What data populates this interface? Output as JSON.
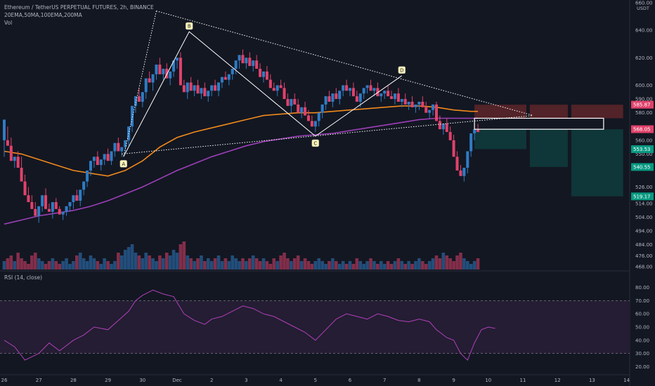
{
  "title": "Ethereum / TetherUS PERPETUAL FUTURES, 2h, BINANCE",
  "indicators_label": "20EMA,50MA,100EMA,200MA",
  "vol_label": "Vol",
  "rsi_label": "RSI (14, close)",
  "currency": "USDT",
  "colors": {
    "bg": "#131722",
    "up": "#2f7cc4",
    "down": "#e0426b",
    "ema100": "#f0891c",
    "ma200": "#9c3fb8",
    "rsi": "#b040b8",
    "rsi_band": "#241d33",
    "stop_zone": "#5a2529",
    "target_zone": "#0f3a3c",
    "pattern": "#ffffff",
    "price_tag_red": "#e0426b",
    "price_tag_green": "#089981",
    "point_label_bg": "#fff5b8"
  },
  "chart_data": {
    "type": "candlestick",
    "x_ticks": [
      "26",
      "27",
      "28",
      "29",
      "30",
      "Dec",
      "2",
      "3",
      "4",
      "5",
      "6",
      "7",
      "8",
      "9",
      "10",
      "11",
      "12",
      "13",
      "14"
    ],
    "y_ticks": [
      468,
      476,
      484,
      494,
      504,
      514,
      526,
      540,
      550,
      560,
      580,
      590,
      600,
      620,
      640,
      660
    ],
    "ylim": [
      466,
      662
    ],
    "candles": [
      [
        26.0,
        560,
        575,
        548
      ],
      [
        26.1,
        560,
        556,
        570
      ],
      [
        26.2,
        556,
        545,
        562
      ],
      [
        26.3,
        545,
        548,
        540
      ],
      [
        26.4,
        548,
        540,
        552
      ],
      [
        26.5,
        540,
        530,
        548
      ],
      [
        26.6,
        530,
        520,
        535
      ],
      [
        26.7,
        520,
        515,
        526
      ],
      [
        26.8,
        515,
        510,
        520
      ],
      [
        26.9,
        510,
        505,
        515
      ],
      [
        27.0,
        505,
        512,
        500
      ],
      [
        27.1,
        512,
        520,
        508
      ],
      [
        27.2,
        520,
        510,
        525
      ],
      [
        27.3,
        510,
        508,
        514
      ],
      [
        27.4,
        508,
        515,
        503
      ],
      [
        27.5,
        515,
        510,
        518
      ],
      [
        27.6,
        510,
        506,
        512
      ],
      [
        27.7,
        506,
        508,
        502
      ],
      [
        27.8,
        508,
        512,
        505
      ],
      [
        27.9,
        512,
        515,
        508
      ],
      [
        28.0,
        515,
        520,
        510
      ],
      [
        28.1,
        520,
        516,
        524
      ],
      [
        28.2,
        516,
        524,
        512
      ],
      [
        28.3,
        524,
        530,
        520
      ],
      [
        28.4,
        530,
        538,
        526
      ],
      [
        28.5,
        538,
        545,
        534
      ],
      [
        28.6,
        545,
        548,
        540
      ],
      [
        28.7,
        548,
        542,
        552
      ],
      [
        28.8,
        542,
        546,
        538
      ],
      [
        28.9,
        546,
        550,
        542
      ],
      [
        29.0,
        550,
        545,
        554
      ],
      [
        29.1,
        545,
        552,
        542
      ],
      [
        29.2,
        552,
        558,
        548
      ],
      [
        29.3,
        558,
        552,
        562
      ],
      [
        29.4,
        552,
        555,
        548
      ],
      [
        29.5,
        555,
        560,
        551
      ],
      [
        29.6,
        560,
        570,
        556
      ],
      [
        29.7,
        570,
        585,
        566
      ],
      [
        29.8,
        585,
        592,
        580
      ],
      [
        29.9,
        592,
        588,
        598
      ],
      [
        30.0,
        588,
        595,
        584
      ],
      [
        30.1,
        595,
        605,
        590
      ],
      [
        30.2,
        605,
        602,
        610
      ],
      [
        30.3,
        602,
        608,
        596
      ],
      [
        30.4,
        608,
        615,
        604
      ],
      [
        30.5,
        615,
        608,
        620
      ],
      [
        30.6,
        608,
        612,
        604
      ],
      [
        30.7,
        612,
        605,
        616
      ],
      [
        30.8,
        605,
        610,
        600
      ],
      [
        30.9,
        610,
        618,
        606
      ],
      [
        31.0,
        618,
        620,
        612
      ],
      [
        31.1,
        620,
        600,
        624
      ],
      [
        31.2,
        600,
        595,
        604
      ],
      [
        31.3,
        595,
        602,
        590
      ],
      [
        31.4,
        602,
        596,
        606
      ],
      [
        31.5,
        596,
        600,
        592
      ],
      [
        31.6,
        600,
        594,
        604
      ],
      [
        31.7,
        594,
        598,
        590
      ],
      [
        31.8,
        598,
        592,
        602
      ],
      [
        31.9,
        592,
        596,
        588
      ],
      [
        32.0,
        596,
        600,
        592
      ],
      [
        32.1,
        600,
        596,
        604
      ],
      [
        32.2,
        596,
        602,
        592
      ],
      [
        32.3,
        602,
        606,
        598
      ],
      [
        32.4,
        606,
        604,
        610
      ],
      [
        32.5,
        604,
        608,
        600
      ],
      [
        32.6,
        608,
        612,
        604
      ],
      [
        32.7,
        612,
        618,
        608
      ],
      [
        32.8,
        618,
        622,
        612
      ],
      [
        32.9,
        622,
        616,
        626
      ],
      [
        33.0,
        616,
        620,
        612
      ],
      [
        33.1,
        620,
        614,
        624
      ],
      [
        33.2,
        614,
        618,
        610
      ],
      [
        33.3,
        618,
        612,
        622
      ],
      [
        33.4,
        612,
        606,
        616
      ],
      [
        33.5,
        606,
        610,
        602
      ],
      [
        33.6,
        610,
        604,
        614
      ],
      [
        33.7,
        604,
        598,
        608
      ],
      [
        33.8,
        598,
        596,
        602
      ],
      [
        33.9,
        596,
        600,
        592
      ],
      [
        34.0,
        600,
        598,
        604
      ],
      [
        34.1,
        598,
        590,
        602
      ],
      [
        34.2,
        590,
        585,
        594
      ],
      [
        34.3,
        585,
        590,
        580
      ],
      [
        34.4,
        590,
        586,
        594
      ],
      [
        34.5,
        586,
        580,
        590
      ],
      [
        34.6,
        580,
        584,
        576
      ],
      [
        34.7,
        584,
        578,
        588
      ],
      [
        34.8,
        578,
        574,
        582
      ],
      [
        34.9,
        574,
        570,
        578
      ],
      [
        35.0,
        570,
        574,
        566
      ],
      [
        35.1,
        574,
        580,
        570
      ],
      [
        35.2,
        580,
        586,
        576
      ],
      [
        35.3,
        586,
        592,
        582
      ],
      [
        35.4,
        592,
        588,
        596
      ],
      [
        35.5,
        588,
        594,
        584
      ],
      [
        35.6,
        594,
        590,
        598
      ],
      [
        35.7,
        590,
        596,
        586
      ],
      [
        35.8,
        596,
        600,
        592
      ],
      [
        35.9,
        600,
        596,
        604
      ],
      [
        36.0,
        596,
        598,
        592
      ],
      [
        36.1,
        598,
        592,
        602
      ],
      [
        36.2,
        592,
        588,
        596
      ],
      [
        36.3,
        588,
        594,
        584
      ],
      [
        36.4,
        594,
        598,
        590
      ],
      [
        36.5,
        598,
        600,
        594
      ],
      [
        36.6,
        600,
        596,
        604
      ],
      [
        36.7,
        596,
        598,
        592
      ],
      [
        36.8,
        598,
        592,
        602
      ],
      [
        36.9,
        592,
        594,
        588
      ],
      [
        37.0,
        594,
        596,
        590
      ],
      [
        37.1,
        596,
        592,
        600
      ],
      [
        37.2,
        592,
        590,
        596
      ],
      [
        37.3,
        590,
        594,
        586
      ],
      [
        37.4,
        594,
        588,
        598
      ],
      [
        37.5,
        588,
        590,
        584
      ],
      [
        37.6,
        590,
        586,
        594
      ],
      [
        37.7,
        586,
        588,
        582
      ],
      [
        37.8,
        588,
        584,
        592
      ],
      [
        37.9,
        584,
        586,
        580
      ],
      [
        38.0,
        586,
        588,
        582
      ],
      [
        38.1,
        588,
        584,
        592
      ],
      [
        38.2,
        584,
        580,
        588
      ],
      [
        38.3,
        580,
        582,
        576
      ],
      [
        38.4,
        582,
        586,
        578
      ],
      [
        38.5,
        586,
        574,
        588
      ],
      [
        38.6,
        574,
        568,
        578
      ],
      [
        38.7,
        568,
        572,
        564
      ],
      [
        38.8,
        572,
        566,
        576
      ],
      [
        38.9,
        566,
        560,
        570
      ],
      [
        39.0,
        560,
        548,
        564
      ],
      [
        39.1,
        548,
        538,
        552
      ],
      [
        39.2,
        538,
        534,
        542
      ],
      [
        39.3,
        534,
        540,
        530
      ],
      [
        39.4,
        540,
        552,
        536
      ],
      [
        39.5,
        552,
        565,
        548
      ],
      [
        39.6,
        565,
        568,
        560
      ],
      [
        39.7,
        568,
        566,
        572
      ]
    ],
    "ema100": [
      [
        26.0,
        552
      ],
      [
        26.5,
        550
      ],
      [
        27.0,
        546
      ],
      [
        27.5,
        542
      ],
      [
        28.0,
        538
      ],
      [
        28.5,
        536
      ],
      [
        29.0,
        534
      ],
      [
        29.5,
        538
      ],
      [
        30.0,
        545
      ],
      [
        30.5,
        555
      ],
      [
        31.0,
        562
      ],
      [
        31.5,
        566
      ],
      [
        32.0,
        569
      ],
      [
        32.5,
        572
      ],
      [
        33.0,
        575
      ],
      [
        33.5,
        578
      ],
      [
        34.0,
        579
      ],
      [
        34.5,
        580
      ],
      [
        35.0,
        580
      ],
      [
        35.5,
        581
      ],
      [
        36.0,
        582
      ],
      [
        36.5,
        583
      ],
      [
        37.0,
        584
      ],
      [
        37.5,
        585
      ],
      [
        38.0,
        585
      ],
      [
        38.5,
        584
      ],
      [
        39.0,
        582
      ],
      [
        39.5,
        581
      ],
      [
        39.7,
        581
      ]
    ],
    "ma200": [
      [
        26.0,
        499
      ],
      [
        26.5,
        502
      ],
      [
        27.0,
        505
      ],
      [
        27.5,
        507
      ],
      [
        28.0,
        509
      ],
      [
        28.5,
        512
      ],
      [
        29.0,
        516
      ],
      [
        29.5,
        521
      ],
      [
        30.0,
        526
      ],
      [
        30.5,
        532
      ],
      [
        31.0,
        538
      ],
      [
        31.5,
        543
      ],
      [
        32.0,
        548
      ],
      [
        32.5,
        552
      ],
      [
        33.0,
        556
      ],
      [
        33.5,
        559
      ],
      [
        34.0,
        561
      ],
      [
        34.5,
        563
      ],
      [
        35.0,
        564
      ],
      [
        35.5,
        565
      ],
      [
        36.0,
        567
      ],
      [
        36.5,
        569
      ],
      [
        37.0,
        571
      ],
      [
        37.5,
        573
      ],
      [
        38.0,
        575
      ],
      [
        38.5,
        576
      ],
      [
        39.0,
        576
      ],
      [
        39.5,
        576
      ],
      [
        39.7,
        576
      ]
    ],
    "volume": [
      3,
      4,
      5,
      3,
      6,
      4,
      3,
      2,
      5,
      6,
      4,
      3,
      2,
      3,
      4,
      3,
      2,
      3,
      4,
      2,
      3,
      5,
      6,
      4,
      3,
      5,
      4,
      3,
      2,
      4,
      3,
      2,
      3,
      6,
      5,
      7,
      8,
      9,
      6,
      5,
      4,
      6,
      5,
      4,
      3,
      5,
      4,
      6,
      5,
      7,
      6,
      9,
      10,
      5,
      4,
      3,
      4,
      5,
      3,
      4,
      3,
      4,
      5,
      3,
      4,
      3,
      5,
      4,
      3,
      4,
      3,
      4,
      5,
      4,
      3,
      4,
      3,
      2,
      4,
      3,
      5,
      6,
      4,
      3,
      4,
      5,
      3,
      4,
      3,
      2,
      3,
      4,
      3,
      2,
      3,
      4,
      3,
      2,
      3,
      2,
      3,
      2,
      4,
      3,
      2,
      3,
      4,
      3,
      2,
      3,
      2,
      3,
      2,
      3,
      4,
      3,
      2,
      3,
      2,
      3,
      4,
      3,
      2,
      3,
      4,
      5,
      4,
      6,
      5,
      4,
      3,
      5,
      6,
      4,
      3,
      2,
      3,
      4
    ],
    "rsi": [
      [
        26.0,
        40
      ],
      [
        26.3,
        35
      ],
      [
        26.6,
        25
      ],
      [
        27.0,
        30
      ],
      [
        27.3,
        38
      ],
      [
        27.6,
        32
      ],
      [
        28.0,
        40
      ],
      [
        28.3,
        44
      ],
      [
        28.6,
        50
      ],
      [
        29.0,
        48
      ],
      [
        29.3,
        55
      ],
      [
        29.6,
        62
      ],
      [
        29.8,
        70
      ],
      [
        30.0,
        74
      ],
      [
        30.3,
        78
      ],
      [
        30.6,
        75
      ],
      [
        30.9,
        73
      ],
      [
        31.2,
        60
      ],
      [
        31.5,
        55
      ],
      [
        31.8,
        52
      ],
      [
        32.0,
        56
      ],
      [
        32.3,
        58
      ],
      [
        32.6,
        62
      ],
      [
        32.9,
        66
      ],
      [
        33.2,
        64
      ],
      [
        33.5,
        60
      ],
      [
        33.8,
        58
      ],
      [
        34.1,
        54
      ],
      [
        34.4,
        50
      ],
      [
        34.7,
        46
      ],
      [
        35.0,
        40
      ],
      [
        35.3,
        48
      ],
      [
        35.6,
        56
      ],
      [
        35.9,
        60
      ],
      [
        36.2,
        58
      ],
      [
        36.5,
        56
      ],
      [
        36.8,
        60
      ],
      [
        37.1,
        58
      ],
      [
        37.4,
        55
      ],
      [
        37.7,
        54
      ],
      [
        38.0,
        56
      ],
      [
        38.3,
        54
      ],
      [
        38.5,
        48
      ],
      [
        38.8,
        42
      ],
      [
        39.0,
        40
      ],
      [
        39.2,
        30
      ],
      [
        39.4,
        25
      ],
      [
        39.6,
        38
      ],
      [
        39.8,
        48
      ],
      [
        40.0,
        50
      ],
      [
        40.2,
        49
      ]
    ],
    "rsi_ylim": [
      16,
      84
    ],
    "rsi_ticks": [
      20,
      30,
      40,
      50,
      60,
      70,
      80
    ],
    "rsi_bands": [
      30,
      70
    ],
    "pattern": {
      "A": [
        29.45,
        548
      ],
      "B": [
        31.35,
        639
      ],
      "C": [
        35.0,
        563
      ],
      "D": [
        37.5,
        607
      ]
    },
    "trendline_upper": [
      [
        30.4,
        654
      ],
      [
        41.3,
        578
      ]
    ],
    "trendline_lower": [
      [
        29.4,
        550
      ],
      [
        41.3,
        578
      ]
    ],
    "entry_box": [
      39.6,
      42.4,
      568,
      576
    ],
    "zones": [
      {
        "x0": 39.6,
        "x1": 41.1,
        "top": 585.87,
        "bottom": 576,
        "kind": "stop"
      },
      {
        "x0": 41.2,
        "x1": 42.3,
        "top": 585.87,
        "bottom": 576,
        "kind": "stop"
      },
      {
        "x0": 42.4,
        "x1": 43.9,
        "top": 585.87,
        "bottom": 576,
        "kind": "stop"
      },
      {
        "x0": 39.6,
        "x1": 41.1,
        "top": 568,
        "bottom": 553.53,
        "kind": "target"
      },
      {
        "x0": 41.2,
        "x1": 42.3,
        "top": 568,
        "bottom": 540.55,
        "kind": "target"
      },
      {
        "x0": 42.4,
        "x1": 43.9,
        "top": 568,
        "bottom": 519.17,
        "kind": "target"
      }
    ],
    "price_tags": [
      {
        "value": "585.87",
        "kind": "red",
        "y": 585.87
      },
      {
        "value": "568.05",
        "kind": "red",
        "y": 568.05
      },
      {
        "value": "553.53",
        "kind": "green",
        "y": 553.53
      },
      {
        "value": "540.55",
        "kind": "green",
        "y": 540.55
      },
      {
        "value": "519.17",
        "kind": "green",
        "y": 519.17
      }
    ]
  }
}
